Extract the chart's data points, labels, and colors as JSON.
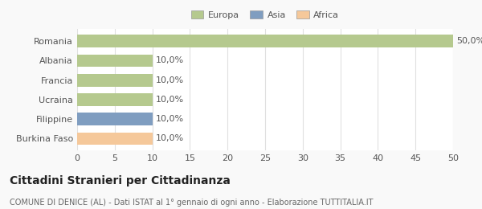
{
  "categories": [
    "Romania",
    "Albania",
    "Francia",
    "Ucraina",
    "Filippine",
    "Burkina Faso"
  ],
  "values": [
    50.0,
    10.0,
    10.0,
    10.0,
    10.0,
    10.0
  ],
  "colors": [
    "#b5c98e",
    "#b5c98e",
    "#b5c98e",
    "#b5c98e",
    "#7f9dc0",
    "#f5c89a"
  ],
  "bar_labels": [
    "50,0%",
    "10,0%",
    "10,0%",
    "10,0%",
    "10,0%",
    "10,0%"
  ],
  "xlim": [
    0,
    50
  ],
  "xticks": [
    0,
    5,
    10,
    15,
    20,
    25,
    30,
    35,
    40,
    45,
    50
  ],
  "legend_items": [
    {
      "label": "Europa",
      "color": "#b5c98e"
    },
    {
      "label": "Asia",
      "color": "#7f9dc0"
    },
    {
      "label": "Africa",
      "color": "#f5c89a"
    }
  ],
  "title": "Cittadini Stranieri per Cittadinanza",
  "subtitle": "COMUNE DI DENICE (AL) - Dati ISTAT al 1° gennaio di ogni anno - Elaborazione TUTTITALIA.IT",
  "bg_color": "#f9f9f9",
  "plot_bg_color": "#ffffff",
  "grid_color": "#e0e0e0",
  "label_fontsize": 8,
  "tick_fontsize": 8,
  "title_fontsize": 10,
  "subtitle_fontsize": 7
}
